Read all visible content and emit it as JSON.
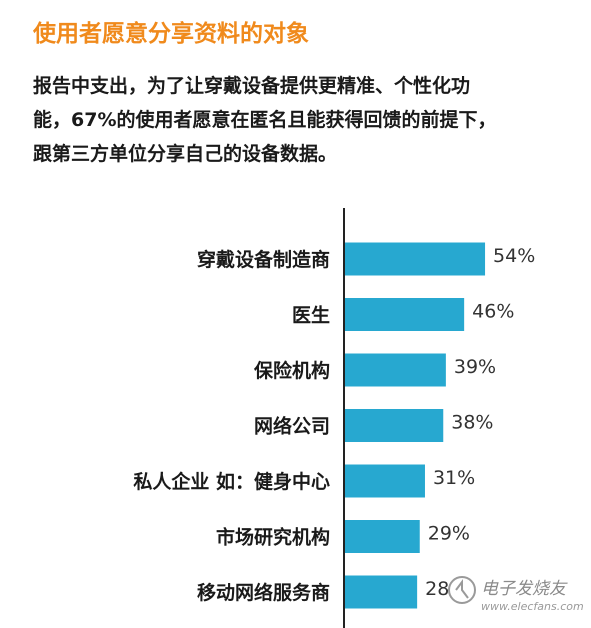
{
  "header": {
    "title": "使用者愿意分享资料的对象",
    "description_lines": [
      "报告中支出，为了让穿戴设备提供更精准、个性化功",
      "能，67%的使用者愿意在匿名且能获得回馈的前提下，",
      "跟第三方单位分享自己的设备数据。"
    ]
  },
  "watermark": {
    "name": "电子发烧友",
    "url": "www.elecfans.com"
  },
  "colors": {
    "title": "#f08a1c",
    "bar": "#27a8d0",
    "axis": "#222222"
  },
  "chart_data": {
    "type": "bar",
    "orientation": "horizontal",
    "categories": [
      "穿戴设备制造商",
      "医生",
      "保险机构",
      "网络公司",
      "私人企业 如：健身中心",
      "市场研究机构",
      "移动网络服务商"
    ],
    "values": [
      54,
      46,
      39,
      38,
      31,
      29,
      28
    ],
    "value_labels": [
      "54%",
      "46%",
      "39%",
      "38%",
      "31%",
      "29%",
      "28"
    ],
    "unit": "%",
    "xlim": [
      0,
      100
    ],
    "grid": false,
    "legend": "none"
  }
}
